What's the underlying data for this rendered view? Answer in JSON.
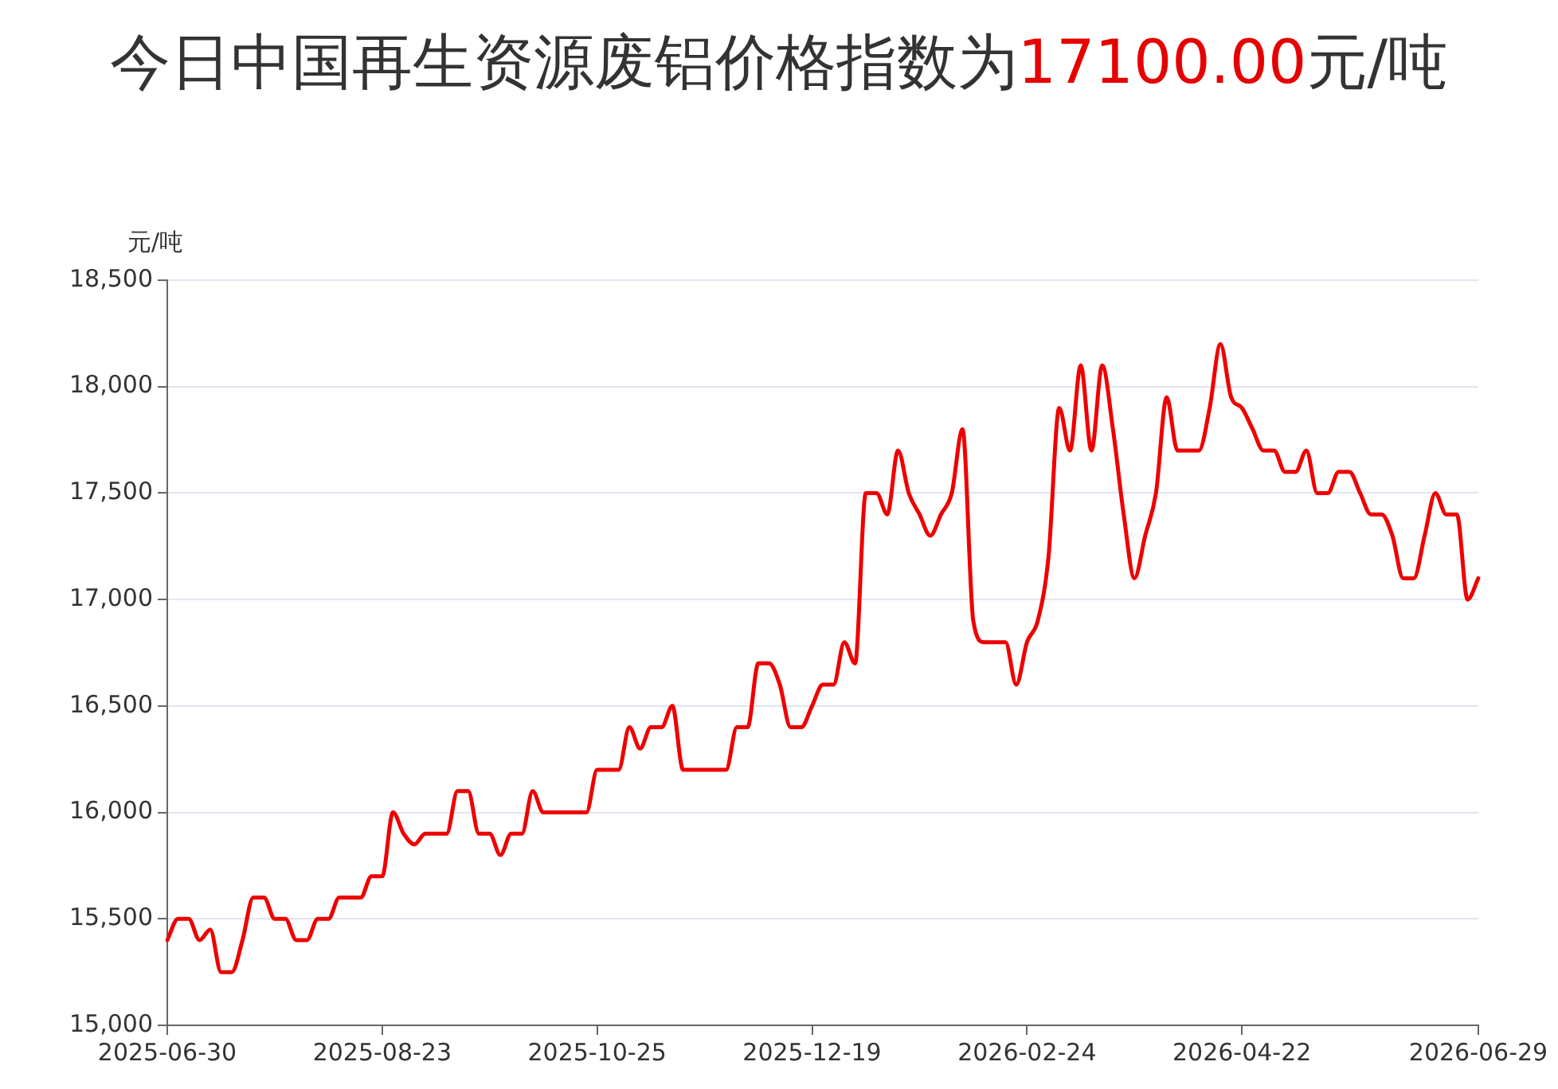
{
  "chart_data": {
    "type": "line",
    "title": "今日中国再生资源废铝价格指数为17100.00元/吨",
    "ylabel": "元/吨",
    "categories": [
      "2025-06-30",
      null,
      null,
      null,
      null,
      null,
      null,
      null,
      null,
      null,
      null,
      null,
      null,
      null,
      null,
      null,
      null,
      null,
      null,
      null,
      "2025-08-23",
      null,
      null,
      null,
      null,
      null,
      null,
      null,
      null,
      null,
      null,
      null,
      null,
      null,
      null,
      null,
      null,
      null,
      null,
      null,
      "2025-10-25",
      null,
      null,
      null,
      null,
      null,
      null,
      null,
      null,
      null,
      null,
      null,
      null,
      null,
      null,
      null,
      null,
      null,
      null,
      null,
      "2025-12-19",
      null,
      null,
      null,
      null,
      null,
      null,
      null,
      null,
      null,
      null,
      null,
      null,
      null,
      null,
      null,
      null,
      null,
      null,
      null,
      "2026-02-24",
      null,
      null,
      null,
      null,
      null,
      null,
      null,
      null,
      null,
      null,
      null,
      null,
      null,
      null,
      null,
      null,
      null,
      null,
      null,
      "2026-04-22",
      null,
      null,
      null,
      null,
      null,
      null,
      null,
      null,
      null,
      null,
      null,
      null,
      null,
      null,
      null,
      null,
      null,
      null,
      null,
      null,
      null,
      "2026-06-29"
    ],
    "series": [
      {
        "color": "#ee0000",
        "values": [
          15400,
          15500,
          15500,
          15400,
          15450,
          15250,
          15250,
          15400,
          15600,
          15600,
          15500,
          15500,
          15400,
          15400,
          15500,
          15500,
          15600,
          15600,
          15600,
          15700,
          15700,
          16000,
          15900,
          15850,
          15900,
          15900,
          15900,
          16100,
          16100,
          15900,
          15900,
          15800,
          15900,
          15900,
          16100,
          16000,
          16000,
          16000,
          16000,
          16000,
          16200,
          16200,
          16200,
          16400,
          16300,
          16400,
          16400,
          16500,
          16200,
          16200,
          16200,
          16200,
          16200,
          16400,
          16400,
          16700,
          16700,
          16600,
          16400,
          16400,
          16500,
          16600,
          16600,
          16800,
          16700,
          17500,
          17500,
          17400,
          17700,
          17500,
          17400,
          17300,
          17400,
          17500,
          17800,
          16900,
          16800,
          16800,
          16800,
          16600,
          16800,
          16900,
          17200,
          17900,
          17700,
          18100,
          17700,
          18100,
          17800,
          17400,
          17100,
          17300,
          17500,
          17950,
          17700,
          17700,
          17700,
          17900,
          18200,
          17950,
          17900,
          17800,
          17700,
          17700,
          17600,
          17600,
          17700,
          17500,
          17500,
          17600,
          17600,
          17500,
          17400,
          17400,
          17300,
          17100,
          17100,
          17300,
          17500,
          17400,
          17400,
          17000,
          17100
        ]
      }
    ],
    "ylim": [
      15000,
      18500
    ],
    "yticks": [
      {
        "value": 15000,
        "label": "15,000"
      },
      {
        "value": 15500,
        "label": "15,500"
      },
      {
        "value": 16000,
        "label": "16,000"
      },
      {
        "value": 16500,
        "label": "16,500"
      },
      {
        "value": 17000,
        "label": "17,000"
      },
      {
        "value": 17500,
        "label": "17,500"
      },
      {
        "value": 18000,
        "label": "18,000"
      },
      {
        "value": 18500,
        "label": "18,500"
      }
    ],
    "grid": "y",
    "legend": false,
    "marker": "none",
    "line_style": "solid"
  }
}
